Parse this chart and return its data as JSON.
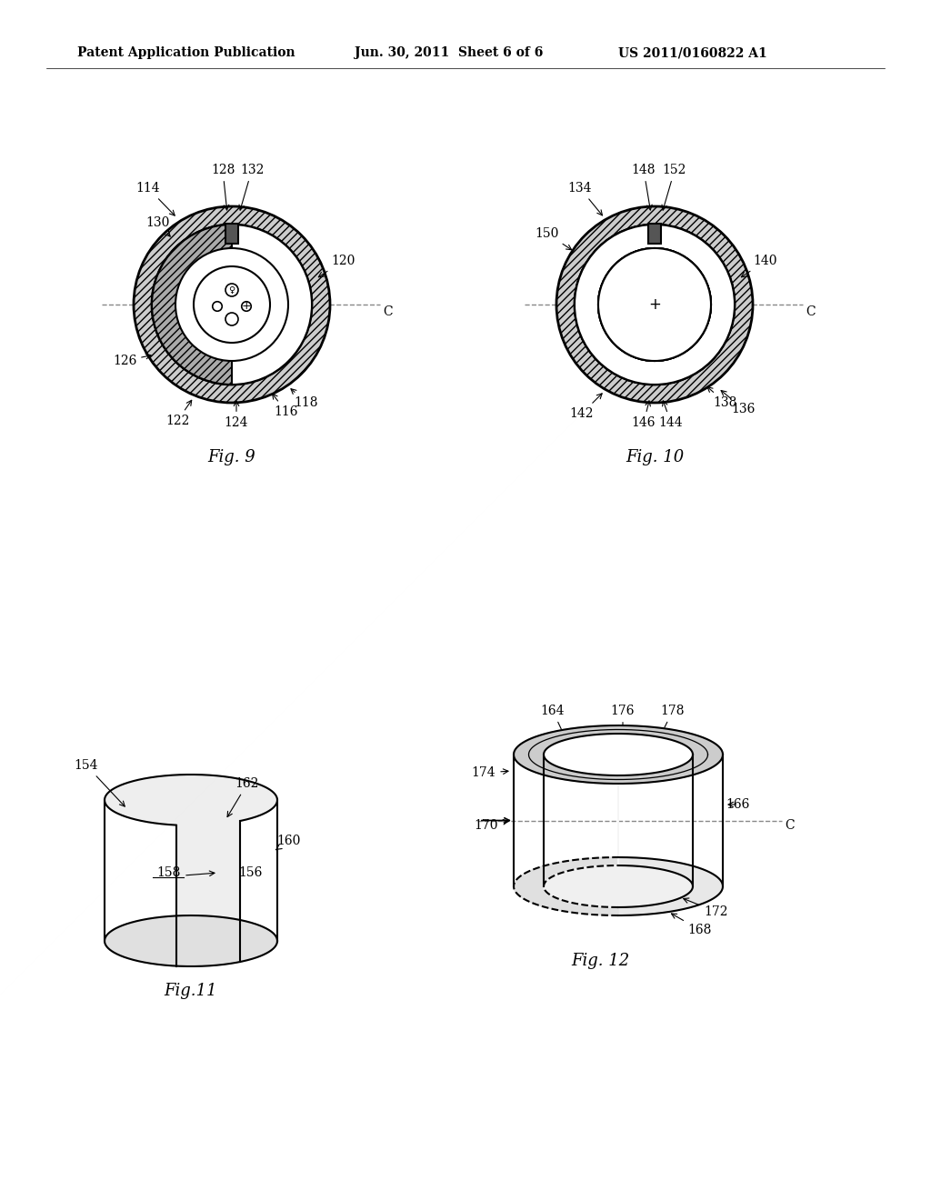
{
  "background_color": "#ffffff",
  "header_left": "Patent Application Publication",
  "header_center": "Jun. 30, 2011  Sheet 6 of 6",
  "header_right": "US 2011/0160822 A1",
  "fig9_label": "Fig. 9",
  "fig10_label": "Fig. 10",
  "fig11_label": "Fig.11",
  "fig12_label": "Fig. 12",
  "line_color": "#000000",
  "dashed_color": "#666666"
}
